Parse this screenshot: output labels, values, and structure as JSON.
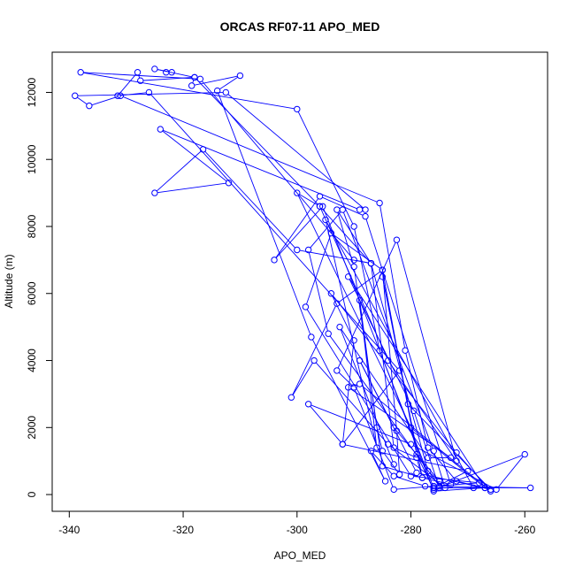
{
  "chart_data": {
    "type": "line",
    "title": "ORCAS RF07-11 APO_MED",
    "xlabel": "APO_MED",
    "ylabel": "Altitude (m)",
    "xlim": [
      -343,
      -256
    ],
    "ylim": [
      -500,
      13200
    ],
    "x_ticks": [
      -340,
      -320,
      -300,
      -280,
      -260
    ],
    "y_ticks": [
      0,
      2000,
      4000,
      6000,
      8000,
      10000,
      12000
    ],
    "x_tick_labels": [
      "-340",
      "-320",
      "-300",
      "-280",
      "-260"
    ],
    "y_tick_labels": [
      "0",
      "2000",
      "4000",
      "6000",
      "8000",
      "10000",
      "12000"
    ],
    "grid": false,
    "legend": "none",
    "colors": {
      "series": "#0000ff",
      "axis": "#000000",
      "background": "#ffffff"
    },
    "series": [
      {
        "marker": "open-circle",
        "x": [
          -323.0,
          -322.0,
          -325.0,
          -318.0,
          -296.0,
          -287.0,
          -283.0,
          -279.0,
          -278.0,
          -285.0,
          -290.0,
          -293.0,
          -287.0,
          -277.0,
          -275.0,
          -283.0,
          -289.0,
          -279.0,
          -266.0,
          -280.5,
          -285.0,
          -278.0,
          -273.0,
          -288.0,
          -296.0,
          -304.0,
          -295.5,
          -276.0,
          -270.0,
          -292.0,
          -298.0,
          -280.0,
          -265.0,
          -260.0,
          -276.0,
          -279.0,
          -285.0,
          -294.0,
          -298.5,
          -280.0,
          -268.0,
          -276.0,
          -283.0,
          -290.0,
          -293.0,
          -282.5,
          -272.0,
          -284.0,
          -296.0,
          -300.0,
          -280.0,
          -267.0,
          -276.0,
          -285.5,
          -290.0,
          -300.0,
          -338.0,
          -317.0,
          -290.0,
          -287.0,
          -300.0,
          -316.5,
          -325.0,
          -312.0,
          -324.0,
          -289.0,
          -288.0,
          -312.5,
          -339.0,
          -336.5,
          -331.0,
          -285.5,
          -281.0,
          -277.0,
          -272.0,
          -267.0,
          -291.0,
          -279.5,
          -275.0,
          -269.0,
          -295.0,
          -286.0,
          -289.0,
          -286.0,
          -285.0,
          -282.0,
          -282.5,
          -285.0,
          -293.0,
          -301.0,
          -297.0,
          -284.0,
          -274.0,
          -276.0,
          -292.0,
          -298.0,
          -294.5,
          -275.0,
          -259.0,
          -276.0,
          -277.5,
          -283.0,
          -287.0,
          -284.5,
          -297.5,
          -314.0,
          -310.0,
          -318.5,
          -318.0,
          -327.5,
          -328.0,
          -331.5,
          -326.0,
          -282.0,
          -292.0,
          -290.0,
          -294.0,
          -272.0,
          -266.0,
          -289.0,
          -291.0,
          -273.0,
          -277.0,
          -292.5,
          -283.0
        ],
        "y": [
          12600,
          12600,
          12700,
          12450,
          8600,
          6900,
          1400,
          1100,
          500,
          850,
          6800,
          8500,
          6900,
          700,
          400,
          2000,
          4000,
          650,
          150,
          2700,
          6500,
          500,
          300,
          8300,
          8900,
          7000,
          8600,
          200,
          700,
          1500,
          2700,
          1500,
          150,
          1200,
          150,
          1200,
          6700,
          7800,
          5600,
          550,
          350,
          250,
          150,
          3200,
          3700,
          7600,
          1000,
          4000,
          8600,
          9000,
          2000,
          200,
          100,
          4300,
          8000,
          11500,
          12600,
          12400,
          7000,
          6900,
          7300,
          10300,
          9000,
          9300,
          10900,
          8500,
          8500,
          12000,
          11900,
          11600,
          11900,
          8700,
          4300,
          1400,
          400,
          200,
          6500,
          2500,
          200,
          200,
          8200,
          1400,
          5800,
          2000,
          1300,
          600,
          1900,
          6700,
          5700,
          2900,
          4000,
          1500,
          200,
          1300,
          8500,
          7300,
          4800,
          250,
          200,
          200,
          250,
          550,
          1300,
          400,
          4700,
          12050,
          12500,
          12200,
          12450,
          12350,
          12600,
          11900,
          12000,
          3700,
          1500,
          4600,
          6000,
          1250,
          100,
          3300,
          3200,
          1100,
          1100,
          5000,
          900
        ]
      }
    ]
  }
}
